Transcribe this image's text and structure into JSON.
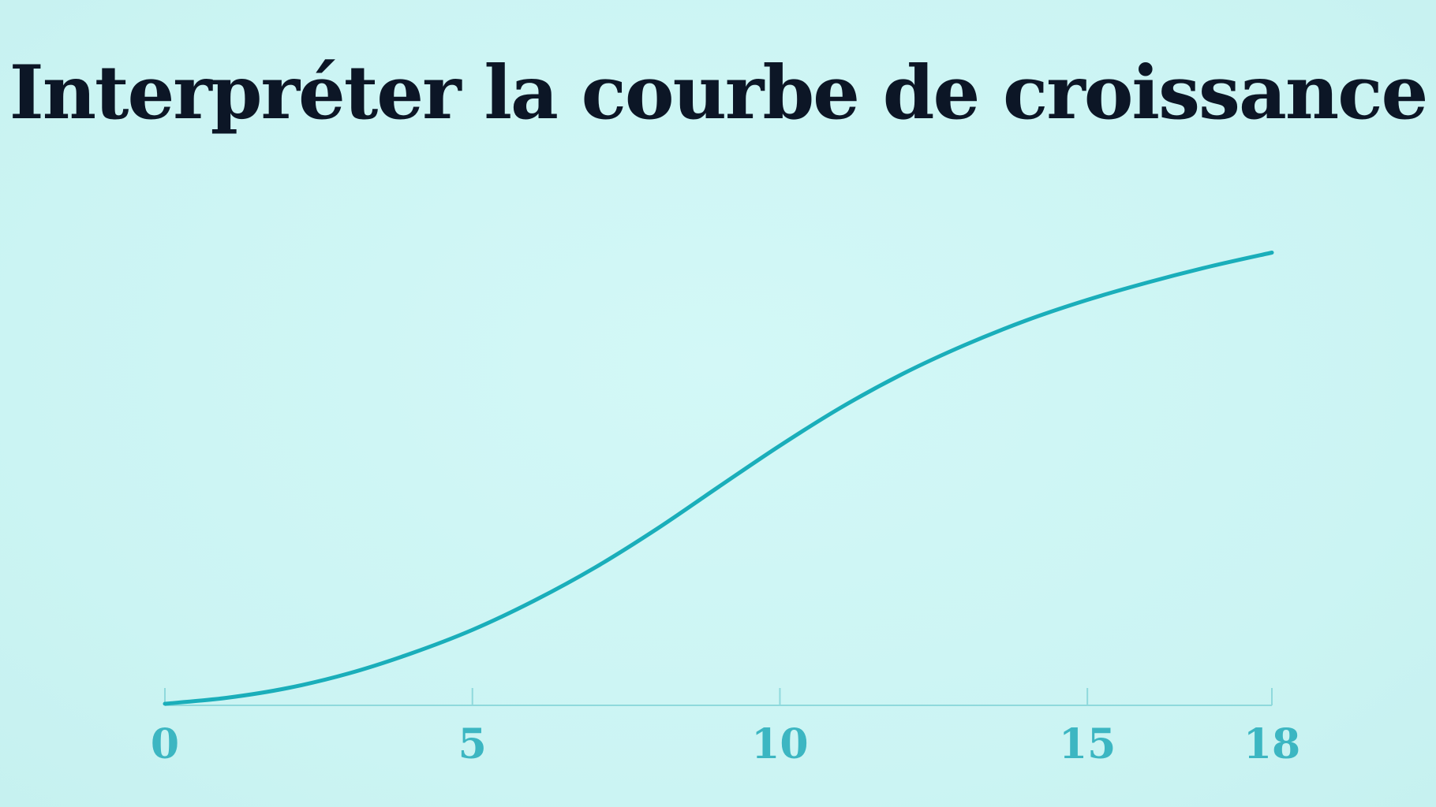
{
  "title": "Interpréter la courbe de croissance",
  "colors": {
    "background": "#cdf6f5",
    "title": "#0c1626",
    "curve": "#1aaeba",
    "axis": "#8fd9dc",
    "tick_label": "#3cb6c2"
  },
  "chart_data": {
    "type": "line",
    "title": "Interpréter la courbe de croissance",
    "xlabel": "",
    "ylabel": "",
    "xlim": [
      0,
      18
    ],
    "ylim": [
      0,
      100
    ],
    "x_ticks": [
      0,
      5,
      10,
      15,
      18
    ],
    "x_tick_labels": [
      "0",
      "5",
      "10",
      "15",
      "18"
    ],
    "grid": false,
    "legend": "none",
    "series": [
      {
        "x": [
          0,
          1,
          2,
          3,
          4,
          5,
          6,
          7,
          8,
          9,
          10,
          11,
          12,
          13,
          14,
          15,
          16,
          17,
          18
        ],
        "values": [
          0,
          1.2,
          3.2,
          6.2,
          10.2,
          15,
          20.9,
          27.7,
          35.5,
          44,
          52.4,
          60.2,
          67,
          72.8,
          77.8,
          82,
          85.6,
          88.8,
          91.6
        ]
      }
    ]
  }
}
